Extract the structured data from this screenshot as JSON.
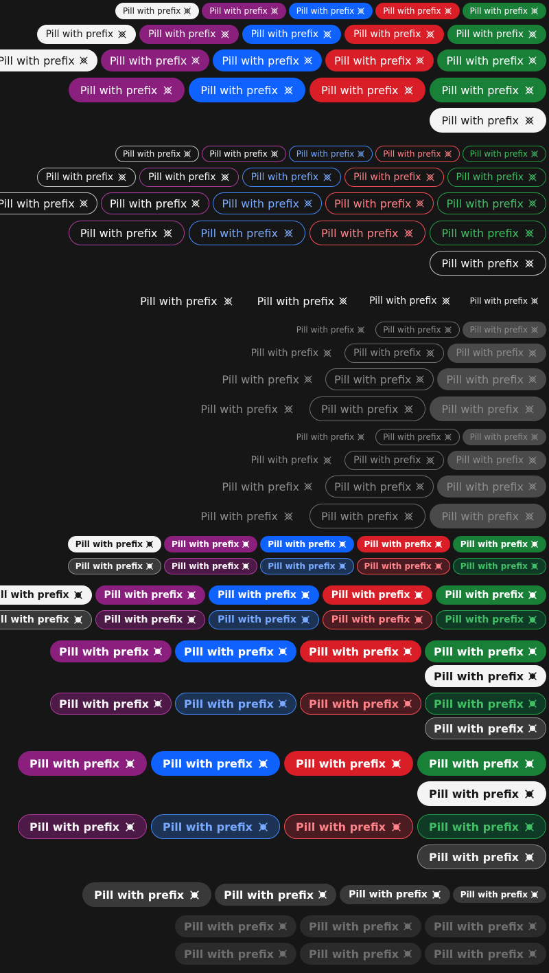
{
  "label": "Pill with prefix",
  "colors": {
    "background": "#161616",
    "white": "#f4f4f4",
    "purple": "#8a1f7e",
    "blue": "#0f62fe",
    "red": "#da1e28",
    "green": "#198038",
    "gray": "#393939"
  },
  "icons": {
    "regular": "close-x-icon",
    "bold": "close-circle-icon"
  },
  "rows": [
    {
      "top": 4,
      "size": "xs",
      "icon": "thin",
      "pills": [
        "f-white",
        "f-purple",
        "f-blue",
        "f-red",
        "f-green"
      ]
    },
    {
      "top": 36,
      "size": "sm",
      "icon": "thin",
      "pills": [
        "f-white",
        "f-purple",
        "f-blue",
        "f-red",
        "f-green"
      ]
    },
    {
      "top": 72,
      "size": "md",
      "icon": "thin",
      "pills": [
        "f-white",
        "f-purple",
        "f-blue",
        "f-red",
        "f-green"
      ]
    },
    {
      "top": 113,
      "size": "lg",
      "icon": "thin",
      "pills": [
        "f-purple",
        "f-blue",
        "f-red",
        "f-green"
      ]
    },
    {
      "top": 157,
      "size": "lg",
      "icon": "thin",
      "pills": [
        "f-white"
      ]
    },
    {
      "top": 212,
      "size": "xs",
      "icon": "thin",
      "pills": [
        "o-white",
        "o-purple",
        "o-blue",
        "o-red",
        "o-green"
      ]
    },
    {
      "top": 244,
      "size": "sm",
      "icon": "thin",
      "pills": [
        "o-white",
        "o-purple",
        "o-blue",
        "o-red",
        "o-green"
      ]
    },
    {
      "top": 280,
      "size": "md",
      "icon": "thin",
      "pills": [
        "o-white",
        "o-purple",
        "o-blue",
        "o-red",
        "o-green"
      ]
    },
    {
      "top": 321,
      "size": "lg",
      "icon": "thin",
      "pills": [
        "o-purple",
        "o-blue",
        "o-red",
        "o-green"
      ]
    },
    {
      "top": 365,
      "size": "lg",
      "icon": "thin",
      "pills": [
        "o-white"
      ]
    },
    {
      "top": 420,
      "size": "xl",
      "icon": "thin",
      "pills": [
        "g-white",
        "g-white",
        "g-white",
        "g-white"
      ],
      "sizes": [
        "lg",
        "md",
        "sm",
        "xs"
      ]
    },
    {
      "top": 468,
      "size": "xs",
      "icon": "thin",
      "pills": [
        "g-gray",
        "o-gray",
        "f-gray2"
      ]
    },
    {
      "top": 500,
      "size": "sm",
      "icon": "thin",
      "pills": [
        "g-gray",
        "o-gray",
        "f-gray2"
      ]
    },
    {
      "top": 536,
      "size": "md",
      "icon": "thin",
      "pills": [
        "g-gray",
        "o-gray",
        "f-gray2"
      ]
    },
    {
      "top": 577,
      "size": "lg",
      "icon": "thin",
      "pills": [
        "g-gray",
        "o-gray",
        "f-gray2"
      ]
    },
    {
      "top": 624,
      "size": "xs",
      "icon": "thin",
      "pills": [
        "g-gray",
        "o-gray",
        "f-gray2"
      ]
    },
    {
      "top": 656,
      "size": "sm",
      "icon": "thin",
      "pills": [
        "g-gray",
        "o-gray",
        "f-gray2"
      ]
    },
    {
      "top": 692,
      "size": "md",
      "icon": "thin",
      "pills": [
        "g-gray",
        "o-gray",
        "f-gray2"
      ]
    },
    {
      "top": 733,
      "size": "lg",
      "icon": "thin",
      "pills": [
        "g-gray",
        "o-gray",
        "f-gray2"
      ]
    },
    {
      "top": 780,
      "size": "xs",
      "icon": "bold",
      "pills": [
        "f-white",
        "f-purple",
        "f-blue",
        "f-red",
        "f-green"
      ]
    },
    {
      "top": 812,
      "size": "xs",
      "icon": "bold",
      "pills": [
        "t-white",
        "t-purple",
        "t-blue",
        "t-red",
        "t-green"
      ]
    },
    {
      "top": 852,
      "size": "sm",
      "icon": "bold",
      "pills": [
        "f-white",
        "f-purple",
        "f-blue",
        "f-red",
        "f-green"
      ]
    },
    {
      "top": 888,
      "size": "sm",
      "icon": "bold",
      "pills": [
        "t-white",
        "t-purple",
        "t-blue",
        "t-red",
        "t-green"
      ]
    },
    {
      "top": 932,
      "size": "md",
      "icon": "bold",
      "pills": [
        "f-purple",
        "f-blue",
        "f-red",
        "f-green"
      ]
    },
    {
      "top": 968,
      "size": "md",
      "icon": "bold",
      "pills": [
        "f-white"
      ]
    },
    {
      "top": 1008,
      "size": "md",
      "icon": "bold",
      "pills": [
        "t-purple",
        "t-blue",
        "t-red",
        "t-green"
      ]
    },
    {
      "top": 1044,
      "size": "md",
      "icon": "bold",
      "pills": [
        "t-white"
      ]
    },
    {
      "top": 1093,
      "size": "lg",
      "icon": "bold",
      "pills": [
        "f-purple",
        "f-blue",
        "f-red",
        "f-green"
      ]
    },
    {
      "top": 1137,
      "size": "lg",
      "icon": "bold",
      "pills": [
        "f-white"
      ]
    },
    {
      "top": 1185,
      "size": "lg",
      "icon": "bold",
      "pills": [
        "t-purple",
        "t-blue",
        "t-red",
        "t-green"
      ]
    },
    {
      "top": 1229,
      "size": "lg",
      "icon": "bold",
      "pills": [
        "t-white"
      ]
    },
    {
      "top": 1284,
      "size": "xl",
      "icon": "bold",
      "pills": [
        "f-gray",
        "f-gray",
        "f-gray",
        "f-gray"
      ],
      "sizes": [
        "lg",
        "md",
        "sm",
        "xs"
      ]
    },
    {
      "top": 1332,
      "size": "md",
      "icon": "bold",
      "pills": [
        "f-dis",
        "f-dis",
        "f-dis"
      ]
    },
    {
      "top": 1372,
      "size": "md",
      "icon": "bold",
      "pills": [
        "f-dis",
        "f-dis",
        "f-dis"
      ]
    }
  ]
}
